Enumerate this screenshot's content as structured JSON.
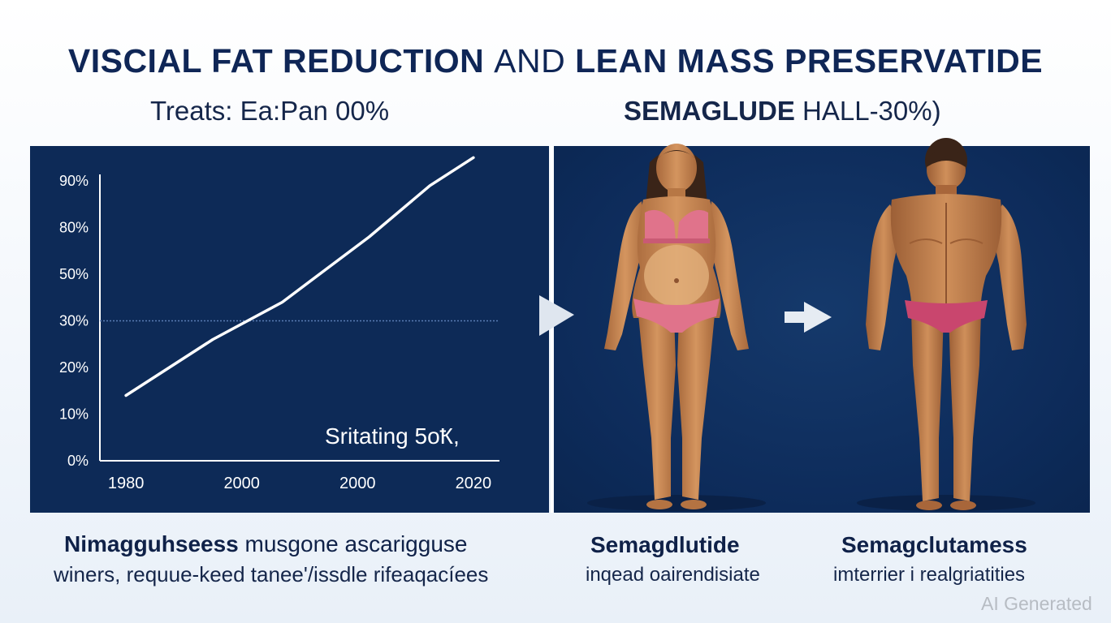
{
  "header": {
    "title_bold_1": "VISCIAL FAT REDUCTION",
    "title_thin": "AND",
    "title_bold_2": "LEAN MASS PRESERVATIDE",
    "subtitle_left": "Treats: Ea:Pan 00%",
    "subtitle_right_bold": "SEMAGLUDE",
    "subtitle_right_rest": "HALL-30%)"
  },
  "chart_data": {
    "type": "line",
    "title": "",
    "xlabel": "",
    "ylabel": "",
    "y_tick_labels": [
      "0%",
      "10%",
      "20%",
      "30%",
      "50%",
      "80%",
      "90%"
    ],
    "x_tick_labels": [
      "1980",
      "2000",
      "2000",
      "2020"
    ],
    "series": [
      {
        "points": [
          [
            0.0,
            1.4
          ],
          [
            1.0,
            2.6
          ],
          [
            1.8,
            3.4
          ],
          [
            2.8,
            4.8
          ],
          [
            3.5,
            5.9
          ],
          [
            4.0,
            6.5
          ]
        ]
      }
    ],
    "xlim": [
      -0.3,
      4.3
    ],
    "ylim": [
      0,
      6
    ],
    "grid": false,
    "reference_line_at_tick": "30%",
    "annotation": "Sritating 5oҞ,",
    "colors": {
      "background": "#0d2a57",
      "line": "#ffffff",
      "axis": "#ffffff",
      "reference": "#5a7db5"
    }
  },
  "figures": {
    "left_figure": "female-body-figure",
    "right_figure": "male-body-figure",
    "panel_color": "#0d2b5a",
    "skin_color": "#c98a55",
    "garment_color": "#e0738b"
  },
  "captions": {
    "left_line1_bold": "Nimagguhseess",
    "left_line1_rest": "musgone ascarigguse",
    "left_line2": "winers, requue-keed tanee'/issdle rifeaqacíees",
    "mid_title": "Semagdlutide",
    "mid_line2": "inqead oairendisiate",
    "right_title": "Semagclutamess",
    "right_line2": "imterrier i realgriatities"
  },
  "watermark": "AI Generated"
}
